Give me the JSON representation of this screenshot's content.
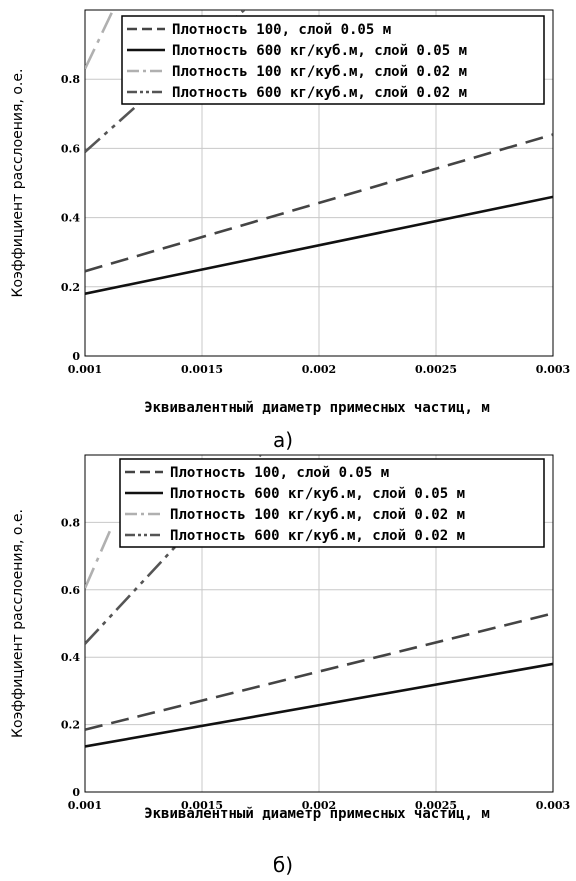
{
  "chart_data": [
    {
      "type": "line",
      "caption": "а)",
      "xlabel": "Эквивалентный диаметр примесных частиц, м",
      "ylabel": "Коэффициент расслоения, о.е.",
      "xlim": [
        0.001,
        0.003
      ],
      "ylim": [
        0,
        1
      ],
      "x_ticks": [
        "0.001",
        "0.0015",
        "0.002",
        "0.0025",
        "0.003"
      ],
      "y_ticks": [
        "0",
        "0.2",
        "0.4",
        "0.6",
        "0.8"
      ],
      "grid": true,
      "legend_position": "top-right",
      "series": [
        {
          "name": "Плотность 100, слой 0.05 м",
          "style": "dashed",
          "color": "#444444",
          "x": [
            0.001,
            0.003
          ],
          "y": [
            0.245,
            0.64
          ]
        },
        {
          "name": "Плотность 600 кг/куб.м, слой 0.05 м",
          "style": "solid",
          "color": "#111111",
          "x": [
            0.001,
            0.003
          ],
          "y": [
            0.18,
            0.46
          ]
        },
        {
          "name": "Плотность 100 кг/куб.м, слой 0.02 м",
          "style": "dashdot",
          "color": "#b0b0b0",
          "x": [
            0.001,
            0.00112
          ],
          "y": [
            0.83,
            1.0
          ]
        },
        {
          "name": "Плотность 600 кг/куб.м, слой 0.02 м",
          "style": "dashdotdot",
          "color": "#555555",
          "x": [
            0.001,
            0.00168
          ],
          "y": [
            0.59,
            1.0
          ]
        }
      ]
    },
    {
      "type": "line",
      "caption": "б)",
      "xlabel": "Эквивалентный диаметр примесных частиц, м",
      "ylabel": "Коэффициент расслоения, о.е.",
      "xlim": [
        0.001,
        0.003
      ],
      "ylim": [
        0,
        1
      ],
      "x_ticks": [
        "0.001",
        "0.0015",
        "0.002",
        "0.0025",
        "0.003"
      ],
      "y_ticks": [
        "0",
        "0.2",
        "0.4",
        "0.6",
        "0.8"
      ],
      "grid": true,
      "legend_position": "top-right",
      "series": [
        {
          "name": "Плотность 100, слой 0.05 м",
          "style": "dashed",
          "color": "#444444",
          "x": [
            0.001,
            0.003
          ],
          "y": [
            0.185,
            0.53
          ]
        },
        {
          "name": "Плотность 600 кг/куб.м, слой 0.05 м",
          "style": "solid",
          "color": "#111111",
          "x": [
            0.001,
            0.003
          ],
          "y": [
            0.135,
            0.38
          ]
        },
        {
          "name": "Плотность 100 кг/куб.м, слой 0.02 м",
          "style": "dashdot",
          "color": "#b0b0b0",
          "x": [
            0.001,
            0.00111
          ],
          "y": [
            0.605,
            0.78
          ]
        },
        {
          "name": "Плотность 600 кг/куб.м, слой 0.02 м",
          "style": "dashdotdot",
          "color": "#555555",
          "x": [
            0.001,
            0.00175
          ],
          "y": [
            0.44,
            1.0
          ]
        }
      ]
    }
  ]
}
